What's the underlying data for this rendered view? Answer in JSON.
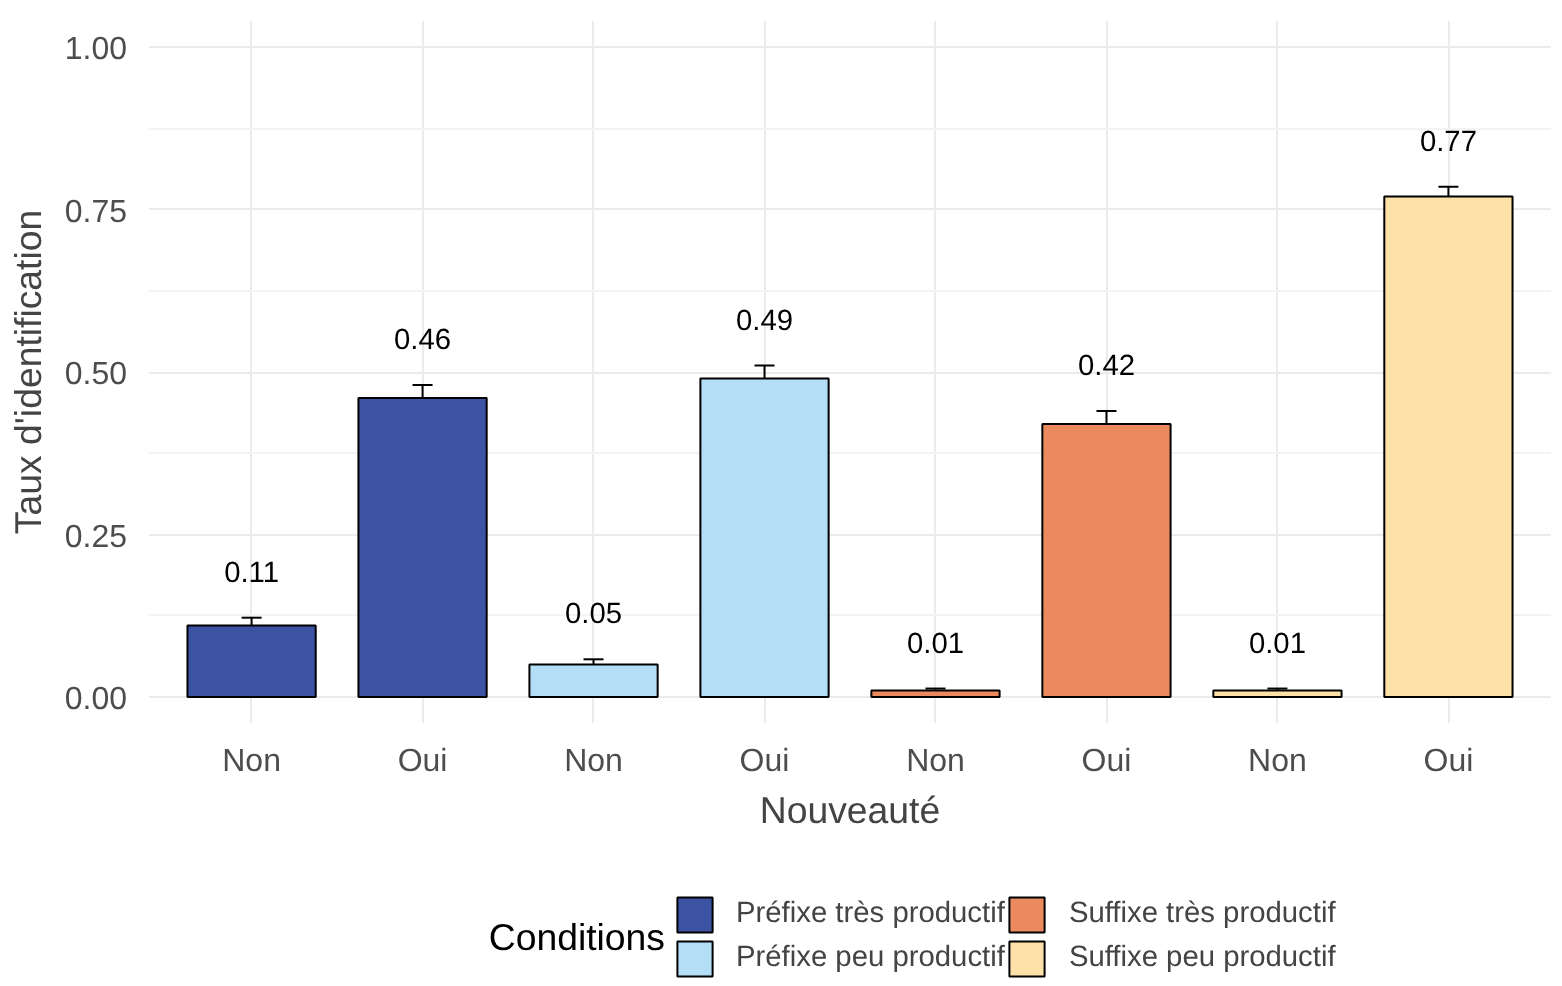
{
  "chart_data": {
    "type": "bar",
    "xlabel": "Nouveauté",
    "ylabel": "Taux d'identification",
    "legend_title": "Conditions",
    "categories": [
      "Non",
      "Oui",
      "Non",
      "Oui",
      "Non",
      "Oui",
      "Non",
      "Oui"
    ],
    "series": [
      {
        "name": "Préfixe très productif",
        "color": "#3c53a4",
        "values": [
          0.11,
          0.46,
          null,
          null,
          null,
          null,
          null,
          null
        ],
        "errors": [
          0.012,
          0.02,
          null,
          null,
          null,
          null,
          null,
          null
        ]
      },
      {
        "name": "Préfixe peu productif",
        "color": "#b3def6",
        "values": [
          null,
          null,
          0.05,
          0.49,
          null,
          null,
          null,
          null
        ],
        "errors": [
          null,
          null,
          0.008,
          0.02,
          null,
          null,
          null,
          null
        ]
      },
      {
        "name": "Suffixe très productif",
        "color": "#ec8a5f",
        "values": [
          null,
          null,
          null,
          null,
          0.01,
          0.42,
          null,
          null
        ],
        "errors": [
          null,
          null,
          null,
          null,
          0.003,
          0.02,
          null,
          null
        ]
      },
      {
        "name": "Suffixe peu productif",
        "color": "#fde1a9",
        "values": [
          null,
          null,
          null,
          null,
          null,
          null,
          0.01,
          0.77
        ],
        "errors": [
          null,
          null,
          null,
          null,
          null,
          null,
          0.003,
          0.015
        ]
      }
    ],
    "ylim": [
      -0.04,
      1.04
    ],
    "yticks": [
      {
        "value": 0,
        "label": "0.00"
      },
      {
        "value": 0.25,
        "label": "0.25"
      },
      {
        "value": 0.5,
        "label": "0.50"
      },
      {
        "value": 0.75,
        "label": "0.75"
      },
      {
        "value": 1,
        "label": "1.00"
      }
    ],
    "grid": true,
    "legend": "bottom",
    "data_labels": true
  }
}
